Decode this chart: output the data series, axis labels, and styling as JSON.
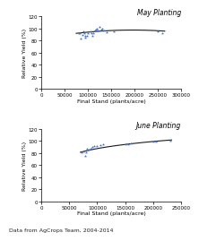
{
  "may_scatter_x": [
    80000,
    82000,
    85000,
    88000,
    90000,
    92000,
    95000,
    95000,
    98000,
    100000,
    105000,
    108000,
    110000,
    112000,
    115000,
    118000,
    120000,
    122000,
    125000,
    128000,
    130000,
    135000,
    140000,
    155000,
    250000,
    260000
  ],
  "may_scatter_y": [
    92,
    93,
    84,
    90,
    95,
    92,
    88,
    85,
    88,
    93,
    96,
    92,
    88,
    93,
    97,
    98,
    100,
    97,
    102,
    98,
    100,
    97,
    94,
    96,
    95,
    92
  ],
  "may_curve_x": [
    75000,
    90000,
    110000,
    130000,
    160000,
    200000,
    260000
  ],
  "may_curve_y": [
    92,
    93.5,
    94.5,
    96,
    97,
    97.5,
    96
  ],
  "may_title": "May Planting",
  "may_xlim": [
    0,
    300000
  ],
  "may_ylim": [
    0,
    120
  ],
  "may_xticks": [
    0,
    50000,
    100000,
    150000,
    200000,
    250000,
    300000
  ],
  "may_xticklabels": [
    "0",
    "50000",
    "100000",
    "150000",
    "200000",
    "250000",
    "300000"
  ],
  "june_scatter_x": [
    72000,
    76000,
    78000,
    80000,
    82000,
    85000,
    88000,
    90000,
    92000,
    95000,
    100000,
    105000,
    110000,
    150000,
    155000,
    160000,
    200000,
    205000,
    230000
  ],
  "june_scatter_y": [
    82,
    83,
    75,
    82,
    87,
    86,
    88,
    88,
    90,
    92,
    92,
    93,
    95,
    95,
    95,
    96,
    99,
    99,
    101
  ],
  "june_curve_x": [
    70000,
    80000,
    90000,
    110000,
    140000,
    170000,
    200000,
    230000
  ],
  "june_curve_y": [
    80,
    83,
    87,
    91,
    94,
    96,
    99,
    101
  ],
  "june_title": "June Planting",
  "june_xlim": [
    0,
    250000
  ],
  "june_ylim": [
    0,
    120
  ],
  "june_xticks": [
    0,
    50000,
    100000,
    150000,
    200000,
    250000
  ],
  "june_xticklabels": [
    "0",
    "50000",
    "100000",
    "150000",
    "200000",
    "250000"
  ],
  "yticks": [
    0,
    20,
    40,
    60,
    80,
    100,
    120
  ],
  "xlabel": "Final Stand (plants/acre)",
  "ylabel": "Relative Yield (%)",
  "footnote": "Data from AgCrops Team, 2004-2014",
  "scatter_color": "#4472c4",
  "curve_color": "#1a1a1a",
  "bg_color": "#ffffff",
  "title_fontsize": 5.5,
  "label_fontsize": 4.5,
  "tick_fontsize": 4.0,
  "footnote_fontsize": 4.5
}
